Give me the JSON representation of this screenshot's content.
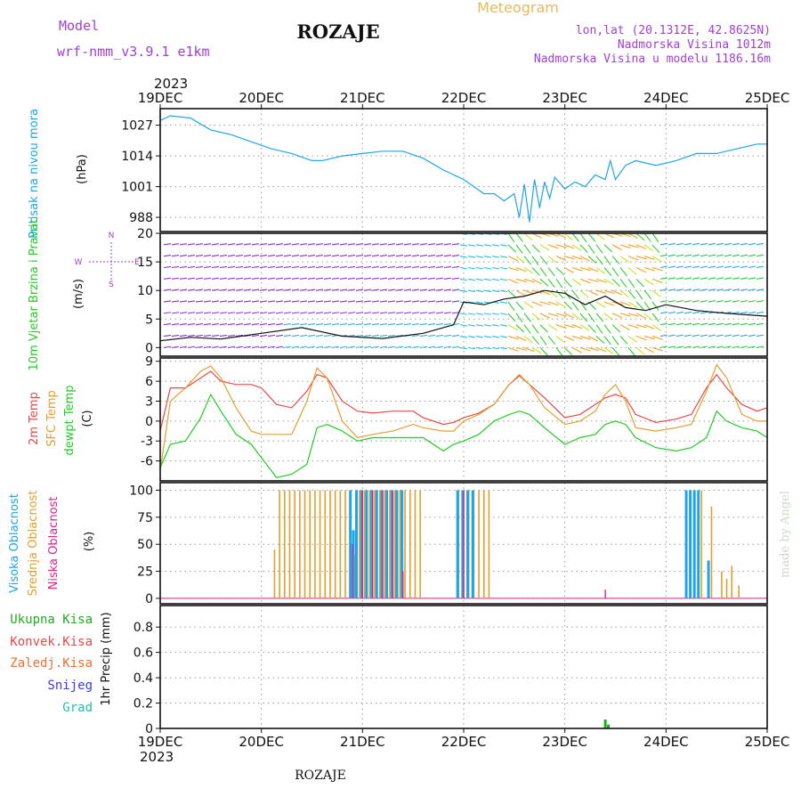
{
  "header": {
    "model_label": "Model",
    "model_name": "wrf-nmm_v3.9.1 e1km",
    "station": "ROZAJE",
    "product": "Meteogram",
    "coords": "lon,lat (20.1312E, 42.8625N)",
    "elevation": "Nadmorska Visina 1012m",
    "model_elevation": "Nadmorska Visina u modelu 1186.16m",
    "footer_station": "ROZAJE",
    "watermark": "made by Angel"
  },
  "colors": {
    "pressure": "#1fa5e6",
    "wind_label": "#22cc22",
    "temp2m": "#e84848",
    "sfc": "#e0a030",
    "dewpt": "#22cc22",
    "cl_high": "#1fa5e6",
    "cl_mid": "#e0a030",
    "cl_low": "#e0208a",
    "purple": "#a040d0",
    "total": "#22aa22",
    "conv": "#e84848",
    "frozen": "#f07030",
    "snow": "#3a3ae0",
    "graupel": "#20c0b0"
  },
  "chart_data": {
    "type": "line",
    "time_axis": {
      "year": "2023",
      "ticks": [
        "19DEC",
        "20DEC",
        "21DEC",
        "22DEC",
        "23DEC",
        "24DEC",
        "25DEC"
      ],
      "x_range_days": [
        19,
        25
      ]
    },
    "panels": {
      "pressure": {
        "ylabel": "Pritisak na nivou mora",
        "units": "(hPa)",
        "yticks": [
          988,
          1001,
          1014,
          1027
        ],
        "ylim": [
          982,
          1034
        ],
        "x": [
          19.0,
          19.1,
          19.3,
          19.5,
          19.7,
          19.9,
          20.1,
          20.3,
          20.5,
          20.6,
          20.8,
          21.0,
          21.2,
          21.4,
          21.6,
          21.8,
          22.0,
          22.2,
          22.3,
          22.4,
          22.5,
          22.55,
          22.6,
          22.65,
          22.7,
          22.75,
          22.8,
          22.85,
          22.9,
          23.0,
          23.1,
          23.2,
          23.3,
          23.4,
          23.45,
          23.5,
          23.6,
          23.7,
          23.9,
          24.1,
          24.3,
          24.5,
          24.7,
          24.9,
          25.0
        ],
        "y": [
          1029,
          1031,
          1030,
          1025,
          1023,
          1020,
          1017,
          1015,
          1012,
          1012,
          1014,
          1015,
          1016,
          1016,
          1013,
          1008,
          1004,
          998,
          998,
          995,
          998,
          988,
          1002,
          986,
          1004,
          992,
          1003,
          996,
          1005,
          1000,
          1003,
          1001,
          1006,
          1004,
          1012,
          1004,
          1010,
          1012,
          1010,
          1012,
          1015,
          1015,
          1017,
          1019,
          1019
        ]
      },
      "wind": {
        "ylabel": "10m Vjetar Brzina i Pravac",
        "units": "(m/s)",
        "compass": "N",
        "compass_w": "W",
        "compass_e": "E",
        "compass_s": "S",
        "yticks": [
          0,
          5,
          10,
          15,
          20
        ],
        "ylim": [
          -1.5,
          20
        ],
        "x": [
          19.0,
          19.3,
          19.6,
          20.0,
          20.4,
          20.8,
          21.2,
          21.6,
          21.9,
          22.0,
          22.2,
          22.4,
          22.6,
          22.8,
          23.0,
          23.2,
          23.4,
          23.6,
          23.8,
          24.0,
          24.3,
          24.6,
          25.0
        ],
        "speed": [
          1.2,
          1.8,
          1.5,
          2.5,
          3.5,
          2.0,
          1.6,
          2.5,
          4.0,
          8.0,
          7.5,
          8.5,
          9.0,
          10.0,
          9.5,
          7.5,
          9.0,
          7.0,
          6.5,
          7.5,
          6.5,
          6.0,
          5.5
        ]
      },
      "temperature": {
        "ylabel_2m": "2m Temp",
        "ylabel_sfc": "SFC Temp",
        "ylabel_dew": "dewpt Temp",
        "units": "(C)",
        "yticks": [
          -6,
          -3,
          0,
          3,
          6,
          9
        ],
        "ylim": [
          -9,
          9.5
        ],
        "x": [
          19.0,
          19.1,
          19.25,
          19.4,
          19.5,
          19.6,
          19.75,
          19.9,
          20.0,
          20.15,
          20.3,
          20.45,
          20.55,
          20.65,
          20.8,
          20.95,
          21.1,
          21.3,
          21.5,
          21.6,
          21.8,
          21.9,
          22.0,
          22.15,
          22.3,
          22.45,
          22.55,
          22.65,
          22.8,
          23.0,
          23.15,
          23.3,
          23.4,
          23.5,
          23.6,
          23.7,
          23.9,
          24.1,
          24.25,
          24.4,
          24.5,
          24.6,
          24.75,
          24.9,
          25.0
        ],
        "t2m": [
          -1.5,
          5.0,
          5.0,
          6.5,
          7.5,
          6.0,
          5.5,
          5.5,
          5.0,
          2.5,
          2.0,
          4.5,
          7.0,
          6.5,
          3.0,
          1.5,
          1.2,
          1.5,
          1.5,
          0.5,
          -0.5,
          -0.2,
          0.5,
          1.2,
          2.5,
          5.5,
          6.8,
          5.5,
          3.5,
          0.5,
          1.0,
          2.5,
          3.5,
          4.0,
          3.5,
          1.0,
          -0.2,
          0.3,
          1.0,
          5.0,
          7.0,
          5.0,
          2.5,
          1.5,
          2.0
        ],
        "tsfc": [
          -7.5,
          3.0,
          5.0,
          7.5,
          8.3,
          6.5,
          2.0,
          -1.5,
          -2.0,
          -2.0,
          -2.0,
          3.0,
          8.0,
          6.5,
          0.0,
          -2.5,
          -2.0,
          -1.5,
          -0.5,
          -1.0,
          -1.5,
          -1.5,
          0.0,
          1.0,
          2.5,
          5.5,
          7.0,
          5.5,
          2.0,
          -0.5,
          0.0,
          1.5,
          4.0,
          5.5,
          3.0,
          -1.0,
          -1.5,
          -1.0,
          -0.5,
          4.5,
          8.5,
          6.5,
          1.0,
          0.0,
          0.0
        ],
        "tdew": [
          -7.0,
          -3.5,
          -3.0,
          0.5,
          4.0,
          1.5,
          -2.0,
          -3.5,
          -5.5,
          -8.5,
          -8.0,
          -6.5,
          -1.0,
          -0.5,
          -1.5,
          -3.0,
          -2.5,
          -2.5,
          -2.5,
          -2.5,
          -4.5,
          -3.5,
          -3.0,
          -2.0,
          0.0,
          1.0,
          1.5,
          1.0,
          -1.0,
          -3.5,
          -2.5,
          -2.0,
          -0.5,
          0.0,
          -0.5,
          -2.5,
          -4.0,
          -4.5,
          -4.0,
          -2.5,
          1.5,
          0.0,
          -1.0,
          -1.5,
          -2.5
        ]
      },
      "cloud": {
        "ylabel_high": "Visoka Oblacnost",
        "ylabel_mid": "Srednja Oblacnost",
        "ylabel_low": "Niska Oblacnost",
        "units": "(%)",
        "yticks": [
          0,
          25,
          50,
          75,
          100
        ],
        "ylim": [
          -5,
          107
        ],
        "mid": [
          [
            20.13,
            45
          ],
          [
            20.18,
            100
          ],
          [
            20.23,
            100
          ],
          [
            20.28,
            100
          ],
          [
            20.33,
            100
          ],
          [
            20.38,
            100
          ],
          [
            20.43,
            100
          ],
          [
            20.48,
            100
          ],
          [
            20.53,
            100
          ],
          [
            20.58,
            100
          ],
          [
            20.63,
            100
          ],
          [
            20.68,
            100
          ],
          [
            20.73,
            100
          ],
          [
            20.78,
            100
          ],
          [
            20.83,
            100
          ],
          [
            20.88,
            100
          ],
          [
            20.93,
            40
          ],
          [
            20.97,
            100
          ],
          [
            21.02,
            100
          ],
          [
            21.07,
            100
          ],
          [
            21.12,
            100
          ],
          [
            21.17,
            100
          ],
          [
            21.22,
            100
          ],
          [
            21.27,
            100
          ],
          [
            21.32,
            100
          ],
          [
            21.37,
            100
          ],
          [
            21.42,
            100
          ],
          [
            21.47,
            100
          ],
          [
            21.52,
            100
          ],
          [
            21.57,
            100
          ],
          [
            21.95,
            100
          ],
          [
            22.0,
            100
          ],
          [
            22.05,
            100
          ],
          [
            22.1,
            100
          ],
          [
            22.15,
            100
          ],
          [
            22.2,
            100
          ],
          [
            22.25,
            100
          ],
          [
            24.35,
            100
          ],
          [
            24.45,
            85
          ],
          [
            24.55,
            25
          ],
          [
            24.6,
            18
          ],
          [
            24.65,
            30
          ],
          [
            24.72,
            12
          ]
        ],
        "high": [
          [
            20.88,
            100
          ],
          [
            20.91,
            63
          ],
          [
            20.94,
            100
          ],
          [
            20.99,
            100
          ],
          [
            21.04,
            100
          ],
          [
            21.09,
            100
          ],
          [
            21.14,
            100
          ],
          [
            21.19,
            100
          ],
          [
            21.24,
            100
          ],
          [
            21.29,
            100
          ],
          [
            21.34,
            100
          ],
          [
            21.39,
            100
          ],
          [
            21.94,
            100
          ],
          [
            21.99,
            100
          ],
          [
            22.04,
            100
          ],
          [
            22.09,
            100
          ],
          [
            24.2,
            100
          ],
          [
            24.24,
            100
          ],
          [
            24.28,
            100
          ],
          [
            24.32,
            100
          ],
          [
            24.42,
            35
          ]
        ],
        "low": [
          [
            20.9,
            50
          ],
          [
            21.0,
            100
          ],
          [
            21.1,
            100
          ],
          [
            21.2,
            100
          ],
          [
            21.3,
            100
          ],
          [
            21.4,
            25
          ],
          [
            22.0,
            100
          ],
          [
            23.4,
            8
          ]
        ]
      },
      "precip": {
        "ylabel": "1hr Precip (mm)",
        "yticks": [
          0,
          0.2,
          0.4,
          0.6,
          0.8
        ],
        "ylim": [
          0,
          0.97
        ],
        "legend": {
          "total": "Ukupna Kisa",
          "conv": "Konvek.Kisa",
          "frozen": "Zaledj.Kisa",
          "snow": "Snijeg",
          "graupel": "Grad"
        },
        "bars": [
          [
            23.4,
            0.07
          ],
          [
            23.43,
            0.03
          ]
        ]
      }
    }
  }
}
